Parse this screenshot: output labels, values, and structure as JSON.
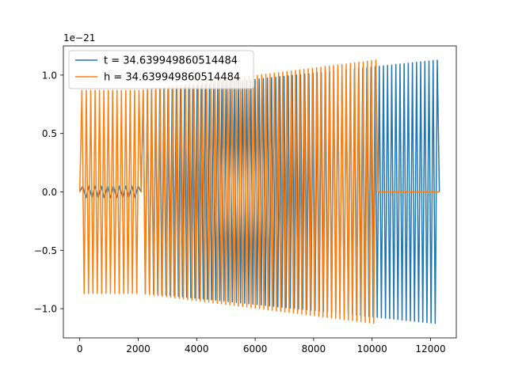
{
  "chart_data": {
    "type": "line",
    "title": "",
    "xlabel": "",
    "ylabel": "",
    "y_scale_label": "1e−21",
    "xlim": [
      -560,
      12880
    ],
    "ylim": [
      -1.25,
      1.25
    ],
    "x_ticks": [
      0,
      2000,
      4000,
      6000,
      8000,
      10000,
      12000
    ],
    "x_tick_labels": [
      "0",
      "2000",
      "4000",
      "6000",
      "8000",
      "10000",
      "12000"
    ],
    "y_ticks": [
      -1.0,
      -0.5,
      0.0,
      0.5,
      1.0
    ],
    "y_tick_labels": [
      "−1.0",
      "−0.5",
      "0.0",
      "0.5",
      "1.0"
    ],
    "grid": false,
    "legend_position": "upper-left",
    "series": [
      {
        "name": "t = 34.639949860514484",
        "color": "#1f77b4",
        "segments": [
          {
            "kind": "osc",
            "x_start": 0,
            "x_end": 2100,
            "cycles": 10,
            "amp_start": 0.05,
            "amp_end": 0.05
          },
          {
            "kind": "osc",
            "x_start": 2100,
            "x_end": 12300,
            "cycles": 72,
            "amp_start": 0.86,
            "amp_end": 1.13
          }
        ]
      },
      {
        "name": "h = 34.639949860514484",
        "color": "#ff7f0e",
        "segments": [
          {
            "kind": "osc",
            "x_start": 0,
            "x_end": 2100,
            "cycles": 14,
            "amp_start": 0.87,
            "amp_end": 0.87
          },
          {
            "kind": "flat",
            "x_start": 2100,
            "x_end": 2100,
            "y": 0
          },
          {
            "kind": "osc",
            "x_start": 2100,
            "x_end": 10200,
            "cycles": 56,
            "amp_start": 0.87,
            "amp_end": 1.13
          },
          {
            "kind": "flat",
            "x_start": 10200,
            "x_end": 12300,
            "y": 0
          }
        ]
      }
    ]
  }
}
